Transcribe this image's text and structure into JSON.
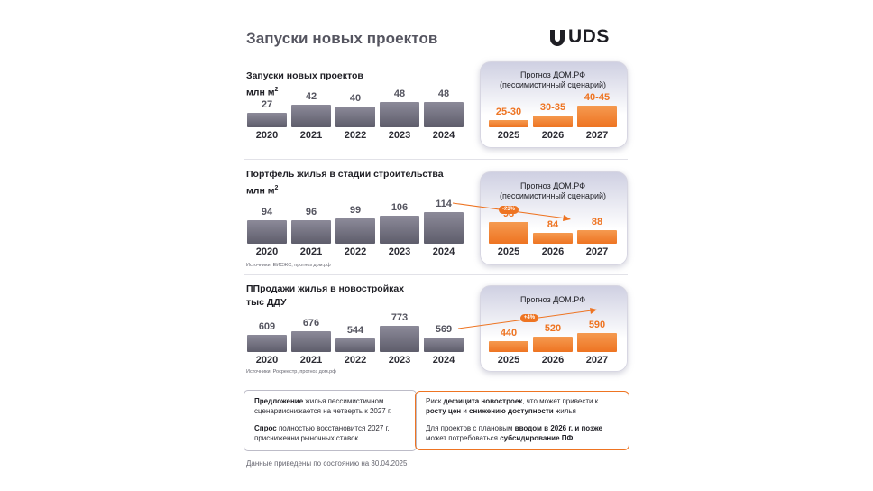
{
  "header": {
    "title": "Запуски новых проектов",
    "logo_text": "UDS"
  },
  "colors": {
    "accent": "#ee7422",
    "bar": "#6f6e7d",
    "panel_top": "#cfd0e2"
  },
  "sections": [
    {
      "title_line1": "Запуски новых проектов",
      "title_line2": "млн м",
      "title_sup": "2",
      "source": "",
      "forecast_title_line1": "Прогноз ДОМ.РФ",
      "forecast_title_line2": "(пессимистичный сценарий)"
    },
    {
      "title_line1": "Портфель жилья в стадии строительства",
      "title_line2": "млн м",
      "title_sup": "2",
      "source": "Источники: ЕИСЖС, прогноз дом.рф",
      "forecast_title_line1": "Прогноз ДОМ.РФ",
      "forecast_title_line2": "(пессимистичный сценарий)",
      "badge": "-23%"
    },
    {
      "title_line1": "ППродажи жилья в новостройках",
      "title_line2": "тыс ДДУ",
      "title_sup": "",
      "source": "Источники: Росреестр, прогноз дом.рф",
      "forecast_title_line1": "Прогноз ДОМ.РФ",
      "forecast_title_line2": "",
      "badge": "+4%"
    }
  ],
  "chart_data": [
    {
      "type": "bar",
      "title": "Запуски новых проектов",
      "ylabel": "млн м2",
      "categories": [
        "2020",
        "2021",
        "2022",
        "2023",
        "2024"
      ],
      "values": [
        27,
        42,
        40,
        48,
        48
      ],
      "labels": [
        "27",
        "42",
        "40",
        "48",
        "48"
      ]
    },
    {
      "type": "bar",
      "title": "Прогноз ДОМ.РФ (пессимистичный сценарий)",
      "categories": [
        "2025",
        "2026",
        "2027"
      ],
      "values": [
        27.5,
        32.5,
        42.5
      ],
      "labels": [
        "25-30",
        "30-35",
        "40-45"
      ]
    },
    {
      "type": "bar",
      "title": "Портфель жилья в стадии строительства",
      "ylabel": "млн м2",
      "categories": [
        "2020",
        "2021",
        "2022",
        "2023",
        "2024"
      ],
      "values": [
        94,
        96,
        99,
        106,
        114
      ],
      "labels": [
        "94",
        "96",
        "99",
        "106",
        "114"
      ]
    },
    {
      "type": "bar",
      "title": "Прогноз ДОМ.РФ (пессимистичный сценарий)",
      "categories": [
        "2025",
        "2026",
        "2027"
      ],
      "values": [
        98,
        84,
        88
      ],
      "labels": [
        "98",
        "84",
        "88"
      ],
      "annotation": "-23%"
    },
    {
      "type": "bar",
      "title": "ППродажи жилья в новостройках",
      "ylabel": "тыс ДДУ",
      "categories": [
        "2020",
        "2021",
        "2022",
        "2023",
        "2024"
      ],
      "values": [
        609,
        676,
        544,
        773,
        569
      ],
      "labels": [
        "609",
        "676",
        "544",
        "773",
        "569"
      ]
    },
    {
      "type": "bar",
      "title": "Прогноз ДОМ.РФ",
      "categories": [
        "2025",
        "2026",
        "2027"
      ],
      "values": [
        440,
        520,
        590
      ],
      "labels": [
        "440",
        "520",
        "590"
      ],
      "annotation": "+4%"
    }
  ],
  "summary": {
    "left_p1_bold": "Предложение",
    "left_p1_rest": " жилья пессимистичном сценарииснижается на четверть к 2027 г.",
    "left_p2_bold": "Спрос",
    "left_p2_rest": " полностью восстановится 2027 г. присниженни рыночных ставок",
    "right_p1_a": "Риск ",
    "right_p1_b": "дефицита новостроек",
    "right_p1_c": ", что может привести к ",
    "right_p1_d": "росту цен",
    "right_p1_e": " и ",
    "right_p1_f": "снижению доступности",
    "right_p1_g": " жилья",
    "right_p2_a": "Для проектов с плановым ",
    "right_p2_b": "вводом в 2026 г.",
    "right_p2_c": " и позже",
    "right_p2_d": " может потребоваться ",
    "right_p2_e": "субсидирование ПФ"
  },
  "footnote": "Данные приведены по состоянию на 30.04.2025"
}
